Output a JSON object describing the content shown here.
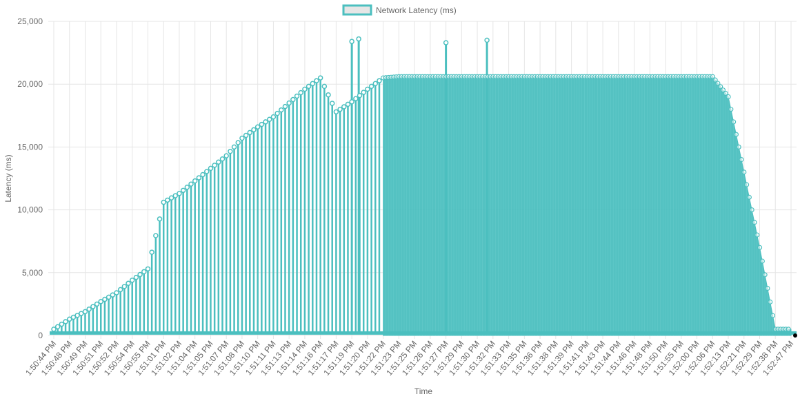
{
  "chart_data": {
    "type": "line",
    "title": "",
    "xlabel": "Time",
    "ylabel": "Latency (ms)",
    "ylim": [
      0,
      25000
    ],
    "yticks": [
      0,
      5000,
      10000,
      15000,
      20000,
      25000
    ],
    "ytick_labels": [
      "0",
      "5,000",
      "10,000",
      "15,000",
      "20,000",
      "25,000"
    ],
    "grid": true,
    "legend_position": "top",
    "colors": {
      "series_line": "#4bbfbf",
      "series_fill": "#4bbfbf",
      "legend_fill": "#e6e6e6",
      "grid": "#e5e5e5",
      "text": "#666666"
    },
    "x_tick_labels": [
      "1:50:44 PM",
      "1:50:48 PM",
      "1:50:49 PM",
      "1:50:51 PM",
      "1:50:52 PM",
      "1:50:54 PM",
      "1:50:55 PM",
      "1:51:01 PM",
      "1:51:02 PM",
      "1:51:04 PM",
      "1:51:05 PM",
      "1:51:07 PM",
      "1:51:08 PM",
      "1:51:10 PM",
      "1:51:11 PM",
      "1:51:13 PM",
      "1:51:14 PM",
      "1:51:16 PM",
      "1:51:17 PM",
      "1:51:19 PM",
      "1:51:20 PM",
      "1:51:22 PM",
      "1:51:23 PM",
      "1:51:25 PM",
      "1:51:26 PM",
      "1:51:27 PM",
      "1:51:29 PM",
      "1:51:30 PM",
      "1:51:32 PM",
      "1:51:33 PM",
      "1:51:35 PM",
      "1:51:36 PM",
      "1:51:38 PM",
      "1:51:39 PM",
      "1:51:41 PM",
      "1:51:43 PM",
      "1:51:44 PM",
      "1:51:46 PM",
      "1:51:48 PM",
      "1:51:50 PM",
      "1:51:55 PM",
      "1:52:00 PM",
      "1:52:06 PM",
      "1:52:13 PM",
      "1:52:21 PM",
      "1:52:29 PM",
      "1:52:38 PM",
      "1:52:47 PM"
    ],
    "series": [
      {
        "name": "Network Latency (ms)",
        "peak_values_by_tick": [
          500,
          1300,
          1900,
          2700,
          3400,
          4400,
          5300,
          10600,
          11300,
          12300,
          13300,
          14300,
          15700,
          16600,
          17400,
          18500,
          19600,
          20500,
          17800,
          18600,
          19600,
          20500,
          20600,
          20600,
          20600,
          20600,
          20600,
          20600,
          20600,
          20600,
          20600,
          20600,
          20600,
          20600,
          20600,
          20600,
          20600,
          20600,
          20600,
          20600,
          20600,
          20600,
          20600,
          19000,
          13000,
          7000,
          500,
          500
        ],
        "spikes": [
          {
            "near_tick": "1:51:19 PM",
            "value": 23400
          },
          {
            "near_tick": "1:51:19 PM",
            "value": 23600
          },
          {
            "near_tick": "1:51:27 PM",
            "value": 23300
          },
          {
            "near_tick": "1:51:30 PM",
            "value": 23500
          }
        ],
        "baseline_value": 200
      }
    ]
  }
}
